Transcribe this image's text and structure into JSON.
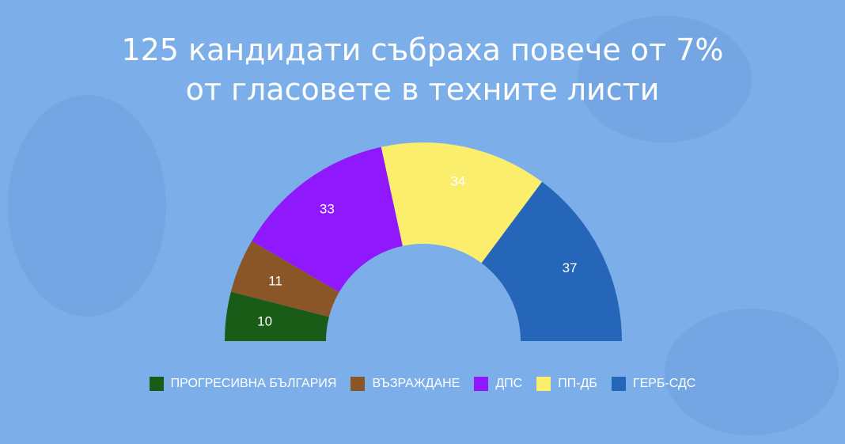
{
  "title_line1": "125 кандидати събраха повече от 7%",
  "title_line2": "от гласовете в техните листи",
  "background_color": "#7cafe9",
  "chart_data": {
    "type": "pie",
    "variant": "semi-donut",
    "title": "125 кандидати събраха повече от 7% от гласовете в техните листи",
    "categories": [
      "ПРОГРЕСИВНА БЪЛГАРИЯ",
      "ВЪЗРАЖДАНЕ",
      "ДПС",
      "ПП-ДБ",
      "ГЕРБ-СДС"
    ],
    "values": [
      10,
      11,
      33,
      34,
      37
    ],
    "colors": [
      "#1a5b17",
      "#8a5628",
      "#8f19fc",
      "#fbee6d",
      "#2666b8"
    ],
    "label_colors": [
      "#ffffff",
      "#ffffff",
      "#ffffff",
      "#ffffff",
      "#ffffff"
    ],
    "legend_position": "bottom"
  }
}
